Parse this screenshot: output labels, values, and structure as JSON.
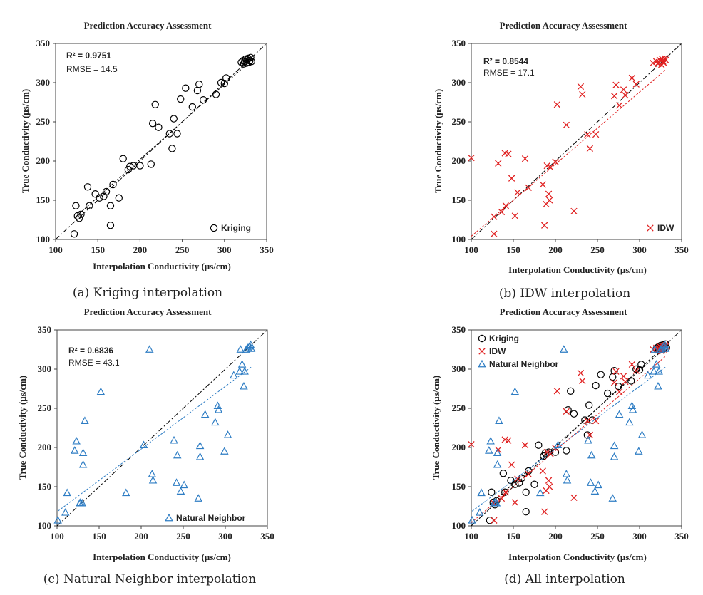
{
  "colors": {
    "kriging": "#000000",
    "idw": "#e02020",
    "natural_neighbor": "#2e7dc4",
    "identity_line": "#000000",
    "kriging_fit": "#000000",
    "idw_fit": "#e02020",
    "nn_fit": "#2e7dc4"
  },
  "chart_data": [
    {
      "type": "scatter",
      "title": "Prediction Accuracy Assessment",
      "xlabel": "Interpolation Conductivity (μs/cm)",
      "ylabel": "True Conductivity (μs/cm)",
      "xlim": [
        100,
        350
      ],
      "ylim": [
        100,
        350
      ],
      "ticks": [
        "100",
        "150",
        "200",
        "250",
        "300",
        "350"
      ],
      "stats": [
        "R² = 0.9751",
        "RMSE = 14.5"
      ],
      "caption": "(a) Kriging interpolation",
      "legend_placement": "bottom-right",
      "series": [
        {
          "name": "Kriging",
          "marker": "circle",
          "fit": [
            0.96,
            10
          ],
          "x": [
            122,
            126,
            128,
            130,
            124,
            140,
            147,
            152,
            157,
            160,
            165,
            168,
            175,
            180,
            186,
            188,
            192,
            200,
            213,
            215,
            218,
            222,
            235,
            238,
            240,
            244,
            248,
            254,
            262,
            268,
            270,
            275,
            290,
            296,
            300,
            302,
            165,
            138,
            320,
            322,
            323,
            324,
            325,
            326,
            327,
            328,
            329,
            330,
            331,
            332
          ],
          "y": [
            107,
            130,
            127,
            132,
            143,
            143,
            158,
            153,
            155,
            161,
            143,
            170,
            153,
            203,
            189,
            193,
            194,
            194,
            196,
            248,
            272,
            243,
            235,
            216,
            254,
            235,
            279,
            293,
            269,
            290,
            298,
            278,
            285,
            300,
            299,
            306,
            118,
            167,
            326,
            328,
            324,
            327,
            330,
            325,
            329,
            331,
            326,
            328,
            332,
            327
          ]
        }
      ]
    },
    {
      "type": "scatter",
      "title": "Prediction Accuracy Assessment",
      "xlabel": "Interpolation Conductivity (μs/cm)",
      "ylabel": "True Conductivity (μs/cm)",
      "xlim": [
        100,
        350
      ],
      "ylim": [
        100,
        350
      ],
      "ticks": [
        "100",
        "150",
        "200",
        "250",
        "300",
        "350"
      ],
      "stats": [
        "R² = 0.8544",
        "RMSE = 17.1"
      ],
      "caption": "(b) IDW interpolation",
      "legend_placement": "bottom-right",
      "series": [
        {
          "name": "IDW",
          "marker": "x",
          "fit": [
            0.92,
            12
          ],
          "x": [
            100,
            127,
            127,
            132,
            136,
            140,
            141,
            144,
            148,
            152,
            155,
            164,
            168,
            185,
            187,
            189,
            190,
            192,
            193,
            194,
            200,
            202,
            213,
            222,
            230,
            232,
            238,
            241,
            248,
            270,
            272,
            276,
            281,
            283,
            291,
            296,
            316,
            320,
            322,
            323,
            324,
            325,
            326,
            327,
            328,
            329,
            330,
            331
          ],
          "y": [
            204,
            107,
            129,
            197,
            135,
            210,
            143,
            209,
            178,
            130,
            160,
            203,
            166,
            170,
            118,
            145,
            194,
            158,
            150,
            192,
            199,
            272,
            246,
            136,
            295,
            285,
            234,
            216,
            234,
            283,
            297,
            271,
            291,
            284,
            306,
            298,
            325,
            327,
            324,
            326,
            329,
            328,
            323,
            330,
            327,
            325,
            331,
            329
          ]
        }
      ]
    },
    {
      "type": "scatter",
      "title": "Prediction Accuracy Assessment",
      "xlabel": "Interpolation Conductivity (μs/cm)",
      "ylabel": "True Conductivity (μs/cm)",
      "xlim": [
        100,
        350
      ],
      "ylim": [
        100,
        350
      ],
      "ticks": [
        "100",
        "150",
        "200",
        "250",
        "300",
        "350"
      ],
      "stats": [
        "R² = 0.6836",
        "RMSE = 43.1"
      ],
      "caption": "(c) Natural Neighbor interpolation",
      "legend_placement": "bottom-right",
      "series": [
        {
          "name": "Natural Neighbor",
          "marker": "triangle",
          "fit": [
            0.8,
            38
          ],
          "x": [
            101,
            110,
            112,
            121,
            123,
            127,
            128,
            130,
            131,
            131,
            133,
            152,
            182,
            203,
            210,
            213,
            214,
            239,
            242,
            243,
            247,
            251,
            268,
            270,
            270,
            276,
            288,
            291,
            292,
            299,
            303,
            310,
            317,
            318,
            320,
            322,
            323,
            325,
            327,
            329,
            330,
            331
          ],
          "y": [
            107,
            117,
            142,
            196,
            208,
            129,
            130,
            129,
            178,
            193,
            234,
            271,
            142,
            203,
            325,
            166,
            158,
            209,
            155,
            190,
            144,
            152,
            135,
            202,
            188,
            242,
            232,
            253,
            248,
            195,
            216,
            292,
            297,
            325,
            306,
            278,
            297,
            325,
            327,
            329,
            331,
            326
          ]
        }
      ]
    },
    {
      "type": "scatter",
      "title": "Prediction Accuracy Assessment",
      "xlabel": "Interpolation Conductivity (μs/cm)",
      "ylabel": "True Conductivity (μs/cm)",
      "xlim": [
        100,
        350
      ],
      "ylim": [
        100,
        350
      ],
      "ticks": [
        "100",
        "150",
        "200",
        "250",
        "300",
        "350"
      ],
      "stats": [],
      "caption": "(d) All interpolation",
      "legend_placement": "top-left",
      "series": [
        {
          "name": "Kriging",
          "marker": "circle",
          "fit": [
            0.96,
            10
          ],
          "x": [
            122,
            126,
            128,
            130,
            124,
            140,
            147,
            152,
            157,
            160,
            165,
            168,
            175,
            180,
            186,
            188,
            192,
            200,
            213,
            215,
            218,
            222,
            235,
            238,
            240,
            244,
            248,
            254,
            262,
            268,
            270,
            275,
            290,
            296,
            300,
            302,
            165,
            138,
            320,
            322,
            323,
            324,
            325,
            326,
            327,
            328,
            329,
            330,
            331,
            332
          ],
          "y": [
            107,
            130,
            127,
            132,
            143,
            143,
            158,
            153,
            155,
            161,
            143,
            170,
            153,
            203,
            189,
            193,
            194,
            194,
            196,
            248,
            272,
            243,
            235,
            216,
            254,
            235,
            279,
            293,
            269,
            290,
            298,
            278,
            285,
            300,
            299,
            306,
            118,
            167,
            326,
            328,
            324,
            327,
            330,
            325,
            329,
            331,
            326,
            328,
            332,
            327
          ]
        },
        {
          "name": "IDW",
          "marker": "x",
          "fit": [
            0.92,
            12
          ],
          "x": [
            100,
            127,
            127,
            132,
            136,
            140,
            141,
            144,
            148,
            152,
            155,
            164,
            168,
            185,
            187,
            189,
            190,
            192,
            193,
            194,
            200,
            202,
            213,
            222,
            230,
            232,
            238,
            241,
            248,
            270,
            272,
            276,
            281,
            283,
            291,
            296,
            316,
            320,
            322,
            323,
            324,
            325,
            326,
            327,
            328,
            329,
            330,
            331
          ],
          "y": [
            204,
            107,
            129,
            197,
            135,
            210,
            143,
            209,
            178,
            130,
            160,
            203,
            166,
            170,
            118,
            145,
            194,
            158,
            150,
            192,
            199,
            272,
            246,
            136,
            295,
            285,
            234,
            216,
            234,
            283,
            297,
            271,
            291,
            284,
            306,
            298,
            325,
            327,
            324,
            326,
            329,
            328,
            323,
            330,
            327,
            325,
            331,
            329
          ]
        },
        {
          "name": "Natural Neighbor",
          "marker": "triangle",
          "fit": [
            0.8,
            38
          ],
          "x": [
            101,
            110,
            112,
            121,
            123,
            127,
            128,
            130,
            131,
            131,
            133,
            152,
            182,
            203,
            210,
            213,
            214,
            239,
            242,
            243,
            247,
            251,
            268,
            270,
            270,
            276,
            288,
            291,
            292,
            299,
            303,
            310,
            317,
            318,
            320,
            322,
            323,
            325,
            327,
            329,
            330,
            331
          ],
          "y": [
            107,
            117,
            142,
            196,
            208,
            129,
            130,
            129,
            178,
            193,
            234,
            271,
            142,
            203,
            325,
            166,
            158,
            209,
            155,
            190,
            144,
            152,
            135,
            202,
            188,
            242,
            232,
            253,
            248,
            195,
            216,
            292,
            297,
            325,
            306,
            278,
            297,
            325,
            327,
            329,
            331,
            326
          ]
        }
      ]
    }
  ]
}
